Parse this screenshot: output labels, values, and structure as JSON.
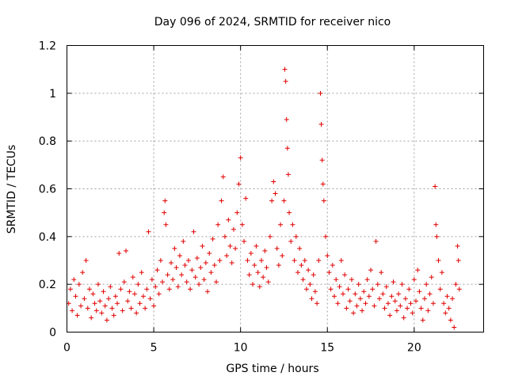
{
  "chart_data": {
    "type": "scatter",
    "title": "Day 096 of 2024, SRMTID for receiver nico",
    "xlabel": "GPS time / hours",
    "ylabel": "SRMTID / TECUs",
    "xlim": [
      0,
      24
    ],
    "ylim": [
      0,
      1.2
    ],
    "x_ticks": [
      0,
      5,
      10,
      15,
      20
    ],
    "x_tick_labels": [
      "0",
      "5",
      "10",
      "15",
      "20"
    ],
    "y_ticks": [
      0,
      0.2,
      0.4,
      0.6,
      0.8,
      1.0,
      1.2
    ],
    "y_tick_labels": [
      "0",
      "0.2",
      "0.4",
      "0.6",
      "0.8",
      "1",
      "1.2"
    ],
    "grid": true,
    "marker": "+",
    "marker_color": "#e00000",
    "series": [
      {
        "name": "SRMTID",
        "points": [
          [
            0.1,
            0.12
          ],
          [
            0.2,
            0.18
          ],
          [
            0.3,
            0.09
          ],
          [
            0.4,
            0.22
          ],
          [
            0.5,
            0.15
          ],
          [
            0.6,
            0.07
          ],
          [
            0.7,
            0.2
          ],
          [
            0.8,
            0.11
          ],
          [
            0.9,
            0.25
          ],
          [
            1.0,
            0.14
          ],
          [
            1.1,
            0.3
          ],
          [
            1.2,
            0.1
          ],
          [
            1.3,
            0.18
          ],
          [
            1.4,
            0.06
          ],
          [
            1.5,
            0.16
          ],
          [
            1.6,
            0.12
          ],
          [
            1.7,
            0.09
          ],
          [
            1.8,
            0.2
          ],
          [
            1.9,
            0.13
          ],
          [
            2.0,
            0.08
          ],
          [
            2.1,
            0.17
          ],
          [
            2.2,
            0.11
          ],
          [
            2.3,
            0.05
          ],
          [
            2.4,
            0.14
          ],
          [
            2.5,
            0.19
          ],
          [
            2.6,
            0.1
          ],
          [
            2.7,
            0.07
          ],
          [
            2.8,
            0.15
          ],
          [
            2.9,
            0.12
          ],
          [
            3.0,
            0.33
          ],
          [
            3.1,
            0.18
          ],
          [
            3.2,
            0.09
          ],
          [
            3.3,
            0.21
          ],
          [
            3.4,
            0.34
          ],
          [
            3.5,
            0.13
          ],
          [
            3.6,
            0.17
          ],
          [
            3.7,
            0.1
          ],
          [
            3.8,
            0.23
          ],
          [
            3.9,
            0.16
          ],
          [
            4.0,
            0.08
          ],
          [
            4.1,
            0.2
          ],
          [
            4.2,
            0.12
          ],
          [
            4.3,
            0.25
          ],
          [
            4.4,
            0.15
          ],
          [
            4.5,
            0.1
          ],
          [
            4.6,
            0.18
          ],
          [
            4.7,
            0.42
          ],
          [
            4.8,
            0.14
          ],
          [
            4.9,
            0.22
          ],
          [
            5.0,
            0.11
          ],
          [
            5.1,
            0.19
          ],
          [
            5.2,
            0.26
          ],
          [
            5.3,
            0.16
          ],
          [
            5.4,
            0.3
          ],
          [
            5.5,
            0.21
          ],
          [
            5.6,
            0.5
          ],
          [
            5.65,
            0.55
          ],
          [
            5.7,
            0.45
          ],
          [
            5.8,
            0.24
          ],
          [
            5.9,
            0.18
          ],
          [
            6.0,
            0.29
          ],
          [
            6.1,
            0.22
          ],
          [
            6.2,
            0.35
          ],
          [
            6.3,
            0.27
          ],
          [
            6.4,
            0.19
          ],
          [
            6.5,
            0.32
          ],
          [
            6.6,
            0.24
          ],
          [
            6.7,
            0.38
          ],
          [
            6.8,
            0.28
          ],
          [
            6.9,
            0.21
          ],
          [
            7.0,
            0.3
          ],
          [
            7.1,
            0.18
          ],
          [
            7.2,
            0.26
          ],
          [
            7.3,
            0.42
          ],
          [
            7.4,
            0.23
          ],
          [
            7.5,
            0.31
          ],
          [
            7.6,
            0.2
          ],
          [
            7.7,
            0.27
          ],
          [
            7.8,
            0.36
          ],
          [
            7.9,
            0.22
          ],
          [
            8.0,
            0.29
          ],
          [
            8.1,
            0.17
          ],
          [
            8.2,
            0.33
          ],
          [
            8.3,
            0.25
          ],
          [
            8.4,
            0.39
          ],
          [
            8.5,
            0.28
          ],
          [
            8.6,
            0.21
          ],
          [
            8.7,
            0.45
          ],
          [
            8.8,
            0.3
          ],
          [
            8.9,
            0.55
          ],
          [
            9.0,
            0.65
          ],
          [
            9.1,
            0.4
          ],
          [
            9.2,
            0.32
          ],
          [
            9.3,
            0.47
          ],
          [
            9.4,
            0.36
          ],
          [
            9.5,
            0.29
          ],
          [
            9.6,
            0.43
          ],
          [
            9.7,
            0.35
          ],
          [
            9.8,
            0.5
          ],
          [
            9.9,
            0.62
          ],
          [
            10.0,
            0.73
          ],
          [
            10.1,
            0.45
          ],
          [
            10.2,
            0.38
          ],
          [
            10.3,
            0.56
          ],
          [
            10.4,
            0.3
          ],
          [
            10.5,
            0.24
          ],
          [
            10.6,
            0.33
          ],
          [
            10.7,
            0.2
          ],
          [
            10.8,
            0.28
          ],
          [
            10.9,
            0.36
          ],
          [
            11.0,
            0.25
          ],
          [
            11.1,
            0.19
          ],
          [
            11.2,
            0.3
          ],
          [
            11.3,
            0.23
          ],
          [
            11.4,
            0.34
          ],
          [
            11.5,
            0.27
          ],
          [
            11.6,
            0.21
          ],
          [
            11.7,
            0.4
          ],
          [
            11.8,
            0.55
          ],
          [
            11.9,
            0.63
          ],
          [
            12.0,
            0.58
          ],
          [
            12.1,
            0.35
          ],
          [
            12.2,
            0.28
          ],
          [
            12.3,
            0.45
          ],
          [
            12.4,
            0.32
          ],
          [
            12.5,
            0.55
          ],
          [
            12.55,
            1.1
          ],
          [
            12.6,
            1.05
          ],
          [
            12.65,
            0.89
          ],
          [
            12.7,
            0.77
          ],
          [
            12.75,
            0.66
          ],
          [
            12.8,
            0.5
          ],
          [
            12.9,
            0.38
          ],
          [
            13.0,
            0.45
          ],
          [
            13.1,
            0.3
          ],
          [
            13.2,
            0.4
          ],
          [
            13.3,
            0.25
          ],
          [
            13.4,
            0.35
          ],
          [
            13.5,
            0.28
          ],
          [
            13.6,
            0.22
          ],
          [
            13.7,
            0.3
          ],
          [
            13.8,
            0.18
          ],
          [
            13.9,
            0.26
          ],
          [
            14.0,
            0.2
          ],
          [
            14.1,
            0.14
          ],
          [
            14.2,
            0.24
          ],
          [
            14.3,
            0.17
          ],
          [
            14.4,
            0.12
          ],
          [
            14.5,
            0.3
          ],
          [
            14.6,
            1.0
          ],
          [
            14.65,
            0.87
          ],
          [
            14.7,
            0.72
          ],
          [
            14.75,
            0.62
          ],
          [
            14.8,
            0.55
          ],
          [
            14.9,
            0.4
          ],
          [
            15.0,
            0.32
          ],
          [
            15.1,
            0.25
          ],
          [
            15.2,
            0.18
          ],
          [
            15.3,
            0.28
          ],
          [
            15.4,
            0.15
          ],
          [
            15.5,
            0.22
          ],
          [
            15.6,
            0.12
          ],
          [
            15.7,
            0.19
          ],
          [
            15.8,
            0.3
          ],
          [
            15.9,
            0.16
          ],
          [
            16.0,
            0.24
          ],
          [
            16.1,
            0.1
          ],
          [
            16.2,
            0.18
          ],
          [
            16.3,
            0.13
          ],
          [
            16.4,
            0.22
          ],
          [
            16.5,
            0.08
          ],
          [
            16.6,
            0.16
          ],
          [
            16.7,
            0.11
          ],
          [
            16.8,
            0.2
          ],
          [
            16.9,
            0.14
          ],
          [
            17.0,
            0.09
          ],
          [
            17.1,
            0.17
          ],
          [
            17.2,
            0.12
          ],
          [
            17.3,
            0.22
          ],
          [
            17.4,
            0.15
          ],
          [
            17.5,
            0.26
          ],
          [
            17.6,
            0.18
          ],
          [
            17.7,
            0.11
          ],
          [
            17.8,
            0.38
          ],
          [
            17.9,
            0.2
          ],
          [
            18.0,
            0.14
          ],
          [
            18.1,
            0.25
          ],
          [
            18.2,
            0.16
          ],
          [
            18.3,
            0.1
          ],
          [
            18.4,
            0.19
          ],
          [
            18.5,
            0.12
          ],
          [
            18.6,
            0.07
          ],
          [
            18.7,
            0.15
          ],
          [
            18.8,
            0.21
          ],
          [
            18.9,
            0.13
          ],
          [
            19.0,
            0.09
          ],
          [
            19.1,
            0.16
          ],
          [
            19.2,
            0.11
          ],
          [
            19.3,
            0.2
          ],
          [
            19.4,
            0.06
          ],
          [
            19.5,
            0.14
          ],
          [
            19.6,
            0.1
          ],
          [
            19.7,
            0.18
          ],
          [
            19.8,
            0.12
          ],
          [
            19.9,
            0.08
          ],
          [
            20.0,
            0.22
          ],
          [
            20.1,
            0.13
          ],
          [
            20.2,
            0.26
          ],
          [
            20.3,
            0.17
          ],
          [
            20.4,
            0.1
          ],
          [
            20.5,
            0.05
          ],
          [
            20.6,
            0.14
          ],
          [
            20.7,
            0.2
          ],
          [
            20.8,
            0.09
          ],
          [
            20.9,
            0.16
          ],
          [
            21.0,
            0.23
          ],
          [
            21.1,
            0.12
          ],
          [
            21.2,
            0.61
          ],
          [
            21.25,
            0.45
          ],
          [
            21.3,
            0.4
          ],
          [
            21.4,
            0.3
          ],
          [
            21.5,
            0.18
          ],
          [
            21.6,
            0.25
          ],
          [
            21.7,
            0.12
          ],
          [
            21.8,
            0.08
          ],
          [
            21.9,
            0.15
          ],
          [
            22.0,
            0.1
          ],
          [
            22.1,
            0.05
          ],
          [
            22.2,
            0.14
          ],
          [
            22.3,
            0.02
          ],
          [
            22.4,
            0.2
          ],
          [
            22.5,
            0.36
          ],
          [
            22.55,
            0.3
          ],
          [
            22.6,
            0.18
          ]
        ]
      }
    ]
  }
}
